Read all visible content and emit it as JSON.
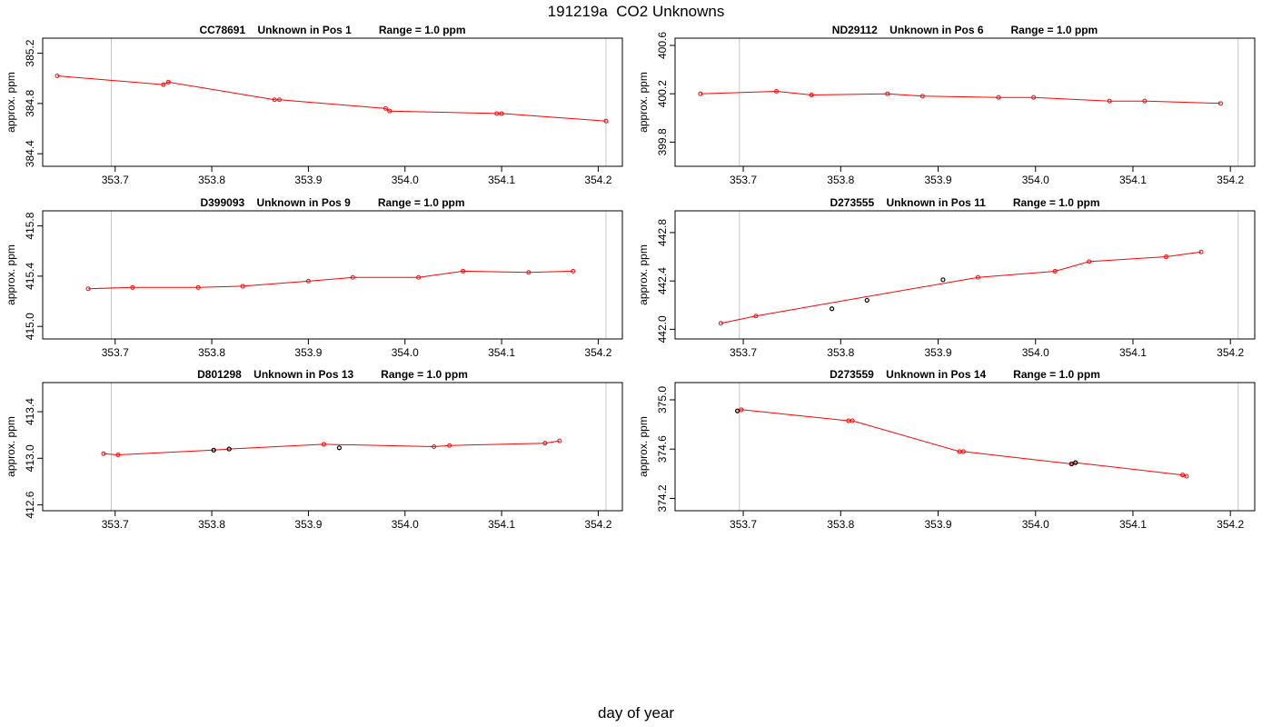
{
  "title": "191219a  CO2 Unknowns",
  "xlabel": "day of year",
  "colors": {
    "series": "#ff0000",
    "flagged": "#000000",
    "vline": "#c8c8c8"
  },
  "chart_data": [
    {
      "type": "line",
      "title": "CC78691    Unknown in Pos 1         Range = 1.0 ppm",
      "ylabel": "approx. ppm",
      "xlim": [
        353.625,
        354.225
      ],
      "ylim": [
        384.3,
        385.32
      ],
      "xticks": [
        "353.7",
        "353.8",
        "353.9",
        "354.0",
        "354.1",
        "354.2"
      ],
      "yticks": [
        "384.4",
        "384.8",
        "385.2"
      ],
      "vlines": [
        353.696,
        354.208
      ],
      "series": [
        {
          "x": [
            353.64,
            353.75,
            353.755,
            353.865,
            353.87,
            353.98,
            353.984,
            354.095,
            354.1,
            354.208
          ],
          "y": [
            385.02,
            384.95,
            384.97,
            384.83,
            384.83,
            384.76,
            384.74,
            384.72,
            384.72,
            384.66
          ]
        }
      ],
      "flagged": []
    },
    {
      "type": "line",
      "title": "ND29112    Unknown in Pos 6         Range = 1.0 ppm",
      "ylabel": "approx. ppm",
      "xlim": [
        353.63,
        354.225
      ],
      "ylim": [
        399.6,
        400.66
      ],
      "xticks": [
        "353.7",
        "353.8",
        "353.9",
        "354.0",
        "354.1",
        "354.2"
      ],
      "yticks": [
        "399.8",
        "400.2",
        "400.6"
      ],
      "vlines": [
        353.696,
        354.208
      ],
      "series": [
        {
          "x": [
            353.656,
            353.734,
            353.77,
            353.848,
            353.884,
            353.962,
            353.998,
            354.076,
            354.112,
            354.19
          ],
          "y": [
            400.2,
            400.22,
            400.19,
            400.2,
            400.18,
            400.17,
            400.17,
            400.14,
            400.14,
            400.12
          ]
        }
      ],
      "flagged": []
    },
    {
      "type": "line",
      "title": "D399093    Unknown in Pos 9         Range = 1.0 ppm",
      "ylabel": "approx. ppm",
      "xlim": [
        353.625,
        354.225
      ],
      "ylim": [
        414.9,
        415.92
      ],
      "xticks": [
        "353.7",
        "353.8",
        "353.9",
        "354.0",
        "354.1",
        "354.2"
      ],
      "yticks": [
        "415.0",
        "415.4",
        "415.8"
      ],
      "vlines": [
        353.696,
        354.208
      ],
      "series": [
        {
          "x": [
            353.672,
            353.718,
            353.786,
            353.832,
            353.9,
            353.946,
            354.014,
            354.06,
            354.128,
            354.174
          ],
          "y": [
            415.3,
            415.31,
            415.31,
            415.32,
            415.36,
            415.39,
            415.39,
            415.44,
            415.43,
            415.44
          ]
        }
      ],
      "flagged": []
    },
    {
      "type": "line",
      "title": "D273555    Unknown in Pos 11         Range = 1.0 ppm",
      "ylabel": "approx. ppm",
      "xlim": [
        353.63,
        354.225
      ],
      "ylim": [
        441.92,
        442.98
      ],
      "xticks": [
        "353.7",
        "353.8",
        "353.9",
        "354.0",
        "354.1",
        "354.2"
      ],
      "yticks": [
        "442.0",
        "442.4",
        "442.8"
      ],
      "vlines": [
        353.696,
        354.208
      ],
      "series": [
        {
          "x": [
            353.677,
            353.713,
            353.941,
            354.02,
            354.055,
            354.134,
            354.17
          ],
          "y": [
            442.05,
            442.11,
            442.43,
            442.48,
            442.56,
            442.6,
            442.64
          ]
        }
      ],
      "flagged": [
        {
          "x": [
            353.791,
            353.827,
            353.905
          ],
          "y": [
            442.17,
            442.24,
            442.41
          ]
        }
      ]
    },
    {
      "type": "line",
      "title": "D801298    Unknown in Pos 13         Range = 1.0 ppm",
      "ylabel": "approx. ppm",
      "xlim": [
        353.625,
        354.225
      ],
      "ylim": [
        412.55,
        413.65
      ],
      "xticks": [
        "353.7",
        "353.8",
        "353.9",
        "354.0",
        "354.1",
        "354.2"
      ],
      "yticks": [
        "412.6",
        "413.0",
        "413.4"
      ],
      "vlines": [
        353.696,
        354.208
      ],
      "series": [
        {
          "x": [
            353.688,
            353.703,
            353.802,
            353.818,
            353.916,
            354.03,
            354.046,
            354.145,
            354.16
          ],
          "y": [
            413.04,
            413.03,
            413.07,
            413.08,
            413.12,
            413.1,
            413.11,
            413.13,
            413.15
          ]
        }
      ],
      "flagged": [
        {
          "x": [
            353.802,
            353.818,
            353.932
          ],
          "y": [
            413.07,
            413.08,
            413.09
          ]
        }
      ]
    },
    {
      "type": "line",
      "title": "D273559    Unknown in Pos 14         Range = 1.0 ppm",
      "ylabel": "approx. ppm",
      "xlim": [
        353.63,
        354.225
      ],
      "ylim": [
        374.1,
        375.14
      ],
      "xticks": [
        "353.7",
        "353.8",
        "353.9",
        "354.0",
        "354.1",
        "354.2"
      ],
      "yticks": [
        "374.2",
        "374.6",
        "375.0"
      ],
      "vlines": [
        353.696,
        354.208
      ],
      "series": [
        {
          "x": [
            353.694,
            353.698,
            353.808,
            353.812,
            353.922,
            353.926,
            354.037,
            354.041,
            354.151,
            354.155
          ],
          "y": [
            374.91,
            374.92,
            374.83,
            374.83,
            374.58,
            374.58,
            374.48,
            374.49,
            374.39,
            374.38
          ]
        }
      ],
      "flagged": [
        {
          "x": [
            353.694,
            354.037,
            354.041
          ],
          "y": [
            374.91,
            374.48,
            374.49
          ]
        }
      ]
    }
  ]
}
